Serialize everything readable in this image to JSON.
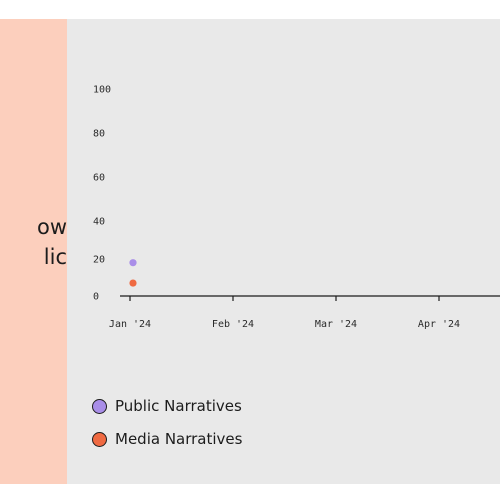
{
  "left_panel": {
    "headline_lines": [
      "ow",
      "lic"
    ]
  },
  "chart_data": {
    "type": "scatter",
    "x_tick_labels": [
      "Jan '24",
      "Feb '24",
      "Mar '24",
      "Apr '24"
    ],
    "y_tick_labels": [
      "100",
      "80",
      "60",
      "40",
      "20",
      "0"
    ],
    "ylim": [
      0,
      100
    ],
    "series": [
      {
        "name": "Public Narratives",
        "color": "#a98ee8",
        "points": [
          {
            "x": "Jan '24",
            "y": 18
          }
        ]
      },
      {
        "name": "Media Narratives",
        "color": "#ef6a42",
        "points": [
          {
            "x": "Jan '24",
            "y": 7
          }
        ]
      }
    ]
  }
}
